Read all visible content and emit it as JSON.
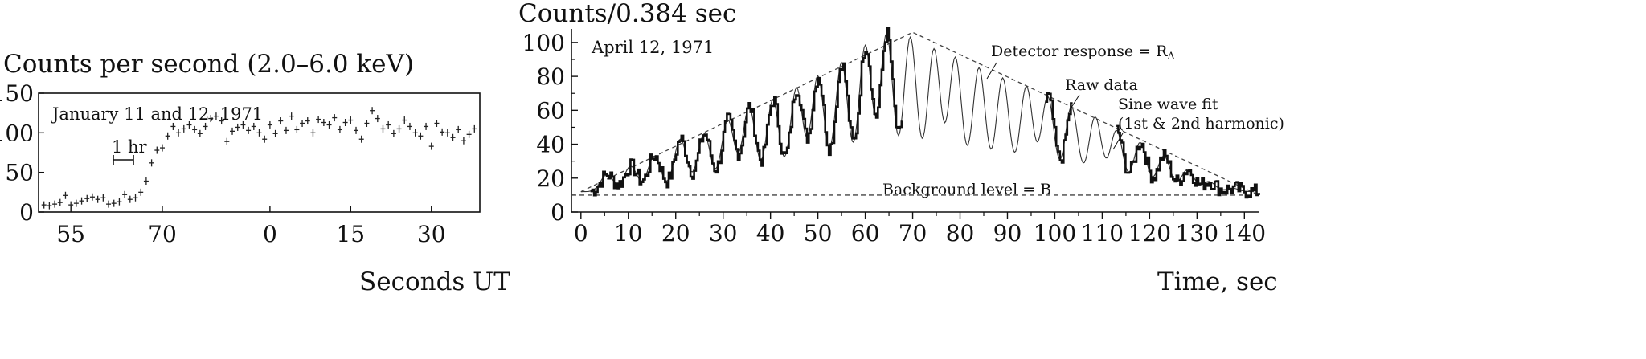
{
  "chart_data": [
    {
      "type": "scatter",
      "title": "Counts per second (2.0–6.0 keV)",
      "annotation": "January 11 and 12, 1971",
      "scale_bar_label": "1 hr",
      "xlabel": "Seconds UT",
      "ylabel": "",
      "ylim": [
        0,
        150
      ],
      "y_ticks": [
        "0",
        "50",
        "100",
        "150"
      ],
      "x_ticks": [
        "55",
        "70",
        "0",
        "15",
        "30"
      ],
      "x_tick_index": [
        53,
        70,
        90,
        105,
        120
      ],
      "xlim_index": [
        47,
        129
      ],
      "error_bars": true,
      "series": [
        {
          "x_index": [
            48,
            49,
            50,
            51,
            52,
            53,
            54,
            55,
            56,
            57,
            58,
            59,
            60,
            61,
            62,
            63,
            64,
            65,
            66,
            67,
            68,
            69,
            70,
            71,
            72,
            73,
            74,
            75,
            76,
            77,
            78,
            79,
            80,
            81,
            82,
            83,
            84,
            85,
            86,
            87,
            88,
            89,
            90,
            91,
            92,
            93,
            94,
            95,
            96,
            97,
            98,
            99,
            100,
            101,
            102,
            103,
            104,
            105,
            106,
            107,
            108,
            109,
            110,
            111,
            112,
            113,
            114,
            115,
            116,
            117,
            118,
            119,
            120,
            121,
            122,
            123,
            124,
            125,
            126,
            127,
            128
          ],
          "values": [
            9,
            8,
            10,
            12,
            21,
            9,
            11,
            14,
            17,
            19,
            16,
            18,
            10,
            11,
            13,
            22,
            16,
            18,
            25,
            39,
            62,
            78,
            81,
            96,
            108,
            100,
            105,
            110,
            104,
            99,
            108,
            118,
            121,
            115,
            89,
            102,
            107,
            110,
            103,
            108,
            100,
            92,
            110,
            99,
            115,
            103,
            121,
            104,
            112,
            115,
            100,
            117,
            113,
            110,
            119,
            104,
            113,
            116,
            103,
            92,
            112,
            128,
            118,
            105,
            110,
            99,
            105,
            116,
            108,
            100,
            96,
            108,
            83,
            112,
            101,
            100,
            94,
            104,
            90,
            98,
            105
          ]
        }
      ]
    },
    {
      "type": "line",
      "title": "Counts/0.384 sec",
      "annotation": "April 12, 1971",
      "xlabel": "Time, sec",
      "ylabel": "",
      "xlim": [
        -2,
        143
      ],
      "ylim": [
        0,
        108
      ],
      "x_ticks": [
        "0",
        "10",
        "20",
        "30",
        "40",
        "50",
        "60",
        "70",
        "80",
        "90",
        "100",
        "110",
        "120",
        "130",
        "140"
      ],
      "y_ticks": [
        "0",
        "20",
        "40",
        "60",
        "80",
        "100"
      ],
      "labels": {
        "detector": "Detector response = R",
        "detector_sub": "Δ",
        "raw": "Raw data",
        "sine1": "Sine wave fit",
        "sine2": "(1st & 2nd harmonic)",
        "background": "Background level = B"
      },
      "background_level": 10,
      "envelope": {
        "x": [
          0,
          70,
          143
        ],
        "y": [
          12,
          106,
          10
        ]
      },
      "pulse_peaks_x": [
        5.5,
        10.5,
        15.5,
        21,
        26,
        31,
        35.5,
        40.5,
        45.5,
        50,
        55,
        60,
        64.5,
        69.5,
        74.5,
        79,
        84,
        89,
        94,
        98.5,
        103.5,
        108.5,
        113,
        118,
        123,
        128,
        132.5,
        137.5
      ],
      "pulse_peaks_y": [
        22,
        27,
        33,
        43,
        46,
        54,
        62,
        66,
        73,
        80,
        88,
        98,
        105,
        103,
        96,
        91,
        85,
        79,
        74,
        68,
        62,
        56,
        48,
        41,
        33,
        25,
        18,
        14
      ],
      "raw_data_segments": [
        [
          2,
          68
        ],
        [
          98,
          103.5
        ],
        [
          113,
          143
        ]
      ]
    }
  ]
}
